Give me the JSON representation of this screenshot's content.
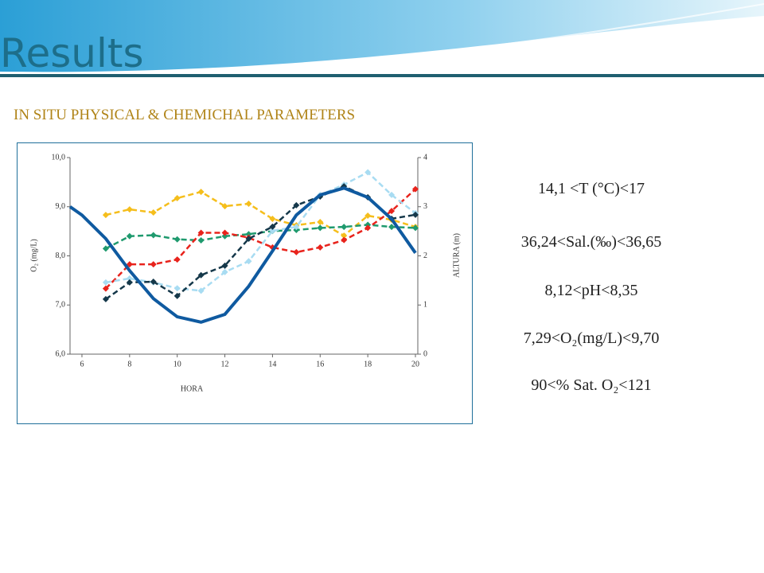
{
  "header": {
    "title": "Results",
    "subtitle": "IN SITU PHYSICAL & CHEMICHAL PARAMETERS"
  },
  "ranges": [
    "14,1 <T (°C)<17",
    "36,24<Sal.(‰)<36,65",
    "8,12<pH<8,35",
    "7,29<O₂(mg/L)<9,70",
    "90<% Sat. O₂<121"
  ],
  "chart_data": {
    "type": "line",
    "x_label": "HORA",
    "y_label": "O₂ (mg/L)",
    "y2_label": "ALTURA (m)",
    "xlim": [
      5.5,
      20.1
    ],
    "xticks": [
      6,
      8,
      10,
      12,
      14,
      16,
      18,
      20
    ],
    "ylim": [
      6,
      10
    ],
    "yticks": [
      {
        "value": 6,
        "label": "6,0"
      },
      {
        "value": 7,
        "label": "7,0"
      },
      {
        "value": 8,
        "label": "8,0"
      },
      {
        "value": 9,
        "label": "9,0"
      },
      {
        "value": 10,
        "label": "10,0"
      }
    ],
    "y2lim": [
      0,
      4
    ],
    "y2ticks": [
      0,
      1,
      2,
      3,
      4
    ],
    "series": [
      {
        "color": "#f5be1c",
        "dashed": true,
        "ylim": [
          6.25,
          19.27
        ],
        "x": [
          7,
          8,
          9,
          10,
          11,
          12,
          13,
          14,
          15,
          16,
          17,
          18,
          19,
          20
        ],
        "values": [
          15.47,
          15.84,
          15.63,
          16.58,
          17,
          16.05,
          16.21,
          15.21,
          14.79,
          15,
          14.1,
          15.42,
          15.15,
          14.68
        ]
      },
      {
        "color": "#1f9a6e",
        "dashed": true,
        "ylim": [
          7.1,
          9.0
        ],
        "x": [
          7,
          8,
          9,
          10,
          11,
          12,
          13,
          14,
          15,
          16,
          17,
          18,
          19,
          20
        ],
        "values": [
          8.12,
          8.24,
          8.25,
          8.21,
          8.2,
          8.24,
          8.26,
          8.29,
          8.3,
          8.32,
          8.33,
          8.35,
          8.33,
          8.32
        ]
      },
      {
        "color": "#e8231c",
        "dashed": true,
        "ylim": [
          35.97,
          36.78
        ],
        "x": [
          7,
          8,
          9,
          10,
          11,
          12,
          13,
          14,
          15,
          16,
          17,
          18,
          19,
          20
        ],
        "values": [
          36.24,
          36.34,
          36.34,
          36.36,
          36.47,
          36.47,
          36.45,
          36.41,
          36.39,
          36.41,
          36.44,
          36.49,
          36.56,
          36.65
        ]
      },
      {
        "color": "#a8dcf2",
        "dashed": true,
        "x": [
          7,
          8,
          9,
          10,
          11,
          12,
          13,
          14,
          15,
          16,
          17,
          18,
          19,
          20
        ],
        "values": [
          7.46,
          7.54,
          7.46,
          7.34,
          7.29,
          7.67,
          7.89,
          8.51,
          8.59,
          9.24,
          9.45,
          9.7,
          9.24,
          8.87
        ]
      },
      {
        "color": "#15384a",
        "dashed": true,
        "ylim": [
          74.9,
          128.9
        ],
        "x": [
          7,
          8,
          9,
          10,
          11,
          12,
          13,
          14,
          15,
          16,
          17,
          18,
          19,
          20
        ],
        "values": [
          90,
          94.6,
          94.8,
          90.9,
          96.6,
          99.2,
          106.6,
          109.9,
          115.8,
          118.2,
          121,
          118,
          112.1,
          113.2
        ]
      },
      {
        "color": "#0f5aa0",
        "dashed": false,
        "axis": "y2",
        "x": [
          5.5,
          6,
          7,
          8,
          9,
          10,
          11,
          12,
          13,
          14,
          15,
          16,
          17,
          18,
          19,
          20
        ],
        "values": [
          3,
          2.83,
          2.35,
          1.7,
          1.13,
          0.76,
          0.65,
          0.81,
          1.38,
          2.1,
          2.83,
          3.24,
          3.38,
          3.19,
          2.75,
          2.06
        ]
      }
    ]
  }
}
